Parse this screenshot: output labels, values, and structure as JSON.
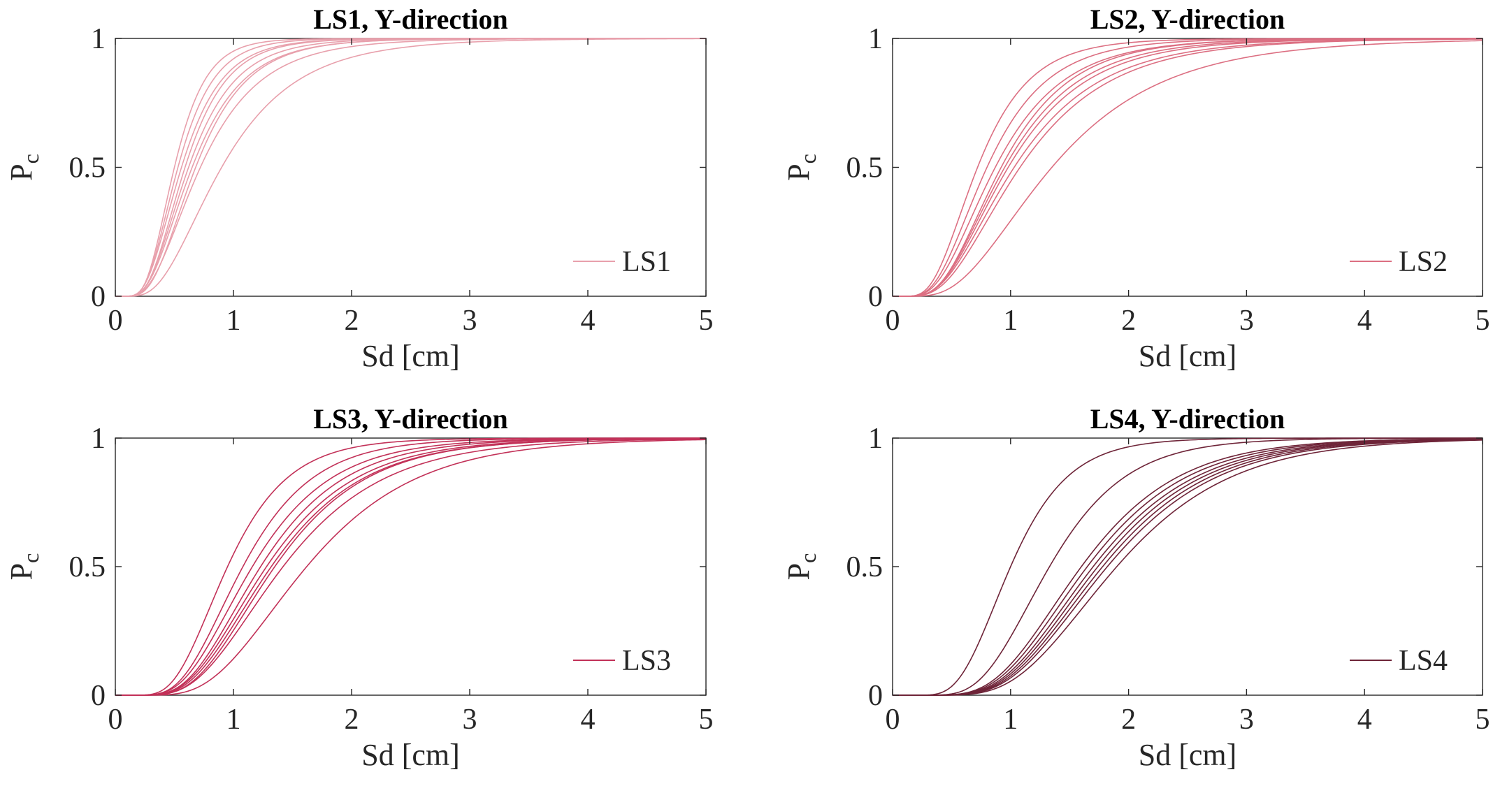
{
  "chart_data": [
    {
      "type": "line",
      "title": "LS1, Y-direction",
      "xlabel": "Sd [cm]",
      "ylabel_main": "P",
      "ylabel_sub": "c",
      "xlim": [
        0,
        5
      ],
      "ylim": [
        0,
        1
      ],
      "xticks": [
        "0",
        "1",
        "2",
        "3",
        "4",
        "5"
      ],
      "yticks": [
        "0",
        "0.5",
        "1"
      ],
      "legend": "LS1",
      "legend_position": "bottom-right",
      "color": "#e8a0ac",
      "series": [
        {
          "name": "curve-1",
          "median": 0.5,
          "beta": 0.42
        },
        {
          "name": "curve-2",
          "median": 0.53,
          "beta": 0.45
        },
        {
          "name": "curve-3",
          "median": 0.56,
          "beta": 0.48
        },
        {
          "name": "curve-4",
          "median": 0.59,
          "beta": 0.47
        },
        {
          "name": "curve-5",
          "median": 0.62,
          "beta": 0.5
        },
        {
          "name": "curve-6",
          "median": 0.65,
          "beta": 0.52
        },
        {
          "name": "curve-7",
          "median": 0.68,
          "beta": 0.5
        },
        {
          "name": "curve-8",
          "median": 0.72,
          "beta": 0.55
        },
        {
          "name": "curve-9",
          "median": 0.9,
          "beta": 0.55
        }
      ]
    },
    {
      "type": "line",
      "title": "LS2, Y-direction",
      "xlabel": "Sd [cm]",
      "ylabel_main": "P",
      "ylabel_sub": "c",
      "xlim": [
        0,
        5
      ],
      "ylim": [
        0,
        1
      ],
      "xticks": [
        "0",
        "1",
        "2",
        "3",
        "4",
        "5"
      ],
      "yticks": [
        "0",
        "0.5",
        "1"
      ],
      "legend": "LS2",
      "legend_position": "bottom-right",
      "color": "#dc6f82",
      "series": [
        {
          "name": "curve-1",
          "median": 0.72,
          "beta": 0.48
        },
        {
          "name": "curve-2",
          "median": 0.8,
          "beta": 0.5
        },
        {
          "name": "curve-3",
          "median": 0.87,
          "beta": 0.52
        },
        {
          "name": "curve-4",
          "median": 0.92,
          "beta": 0.5
        },
        {
          "name": "curve-5",
          "median": 0.95,
          "beta": 0.52
        },
        {
          "name": "curve-6",
          "median": 0.98,
          "beta": 0.53
        },
        {
          "name": "curve-7",
          "median": 1.03,
          "beta": 0.55
        },
        {
          "name": "curve-8",
          "median": 1.08,
          "beta": 0.55
        },
        {
          "name": "curve-9",
          "median": 1.35,
          "beta": 0.55
        }
      ]
    },
    {
      "type": "line",
      "title": "LS3, Y-direction",
      "xlabel": "Sd [cm]",
      "ylabel_main": "P",
      "ylabel_sub": "c",
      "xlim": [
        0,
        5
      ],
      "ylim": [
        0,
        1
      ],
      "xticks": [
        "0",
        "1",
        "2",
        "3",
        "4",
        "5"
      ],
      "yticks": [
        "0",
        "0.5",
        "1"
      ],
      "legend": "LS3",
      "legend_position": "bottom-right",
      "color": "#c23158",
      "series": [
        {
          "name": "curve-1",
          "median": 0.95,
          "beta": 0.42
        },
        {
          "name": "curve-2",
          "median": 1.08,
          "beta": 0.43
        },
        {
          "name": "curve-3",
          "median": 1.16,
          "beta": 0.45
        },
        {
          "name": "curve-4",
          "median": 1.23,
          "beta": 0.45
        },
        {
          "name": "curve-5",
          "median": 1.28,
          "beta": 0.46
        },
        {
          "name": "curve-6",
          "median": 1.32,
          "beta": 0.46
        },
        {
          "name": "curve-7",
          "median": 1.35,
          "beta": 0.45
        },
        {
          "name": "curve-8",
          "median": 1.42,
          "beta": 0.47
        },
        {
          "name": "curve-9",
          "median": 1.62,
          "beta": 0.45
        }
      ]
    },
    {
      "type": "line",
      "title": "LS4, Y-direction",
      "xlabel": "Sd [cm]",
      "ylabel_main": "P",
      "ylabel_sub": "c",
      "xlim": [
        0,
        5
      ],
      "ylim": [
        0,
        1
      ],
      "xticks": [
        "0",
        "1",
        "2",
        "3",
        "4",
        "5"
      ],
      "yticks": [
        "0",
        "0.5",
        "1"
      ],
      "legend": "LS4",
      "legend_position": "bottom-right",
      "color": "#6e2438",
      "series": [
        {
          "name": "curve-1",
          "median": 1.0,
          "beta": 0.38
        },
        {
          "name": "curve-2",
          "median": 1.33,
          "beta": 0.38
        },
        {
          "name": "curve-3",
          "median": 1.6,
          "beta": 0.4
        },
        {
          "name": "curve-4",
          "median": 1.65,
          "beta": 0.4
        },
        {
          "name": "curve-5",
          "median": 1.7,
          "beta": 0.4
        },
        {
          "name": "curve-6",
          "median": 1.74,
          "beta": 0.4
        },
        {
          "name": "curve-7",
          "median": 1.78,
          "beta": 0.4
        },
        {
          "name": "curve-8",
          "median": 1.82,
          "beta": 0.4
        },
        {
          "name": "curve-9",
          "median": 1.9,
          "beta": 0.4
        }
      ]
    }
  ]
}
